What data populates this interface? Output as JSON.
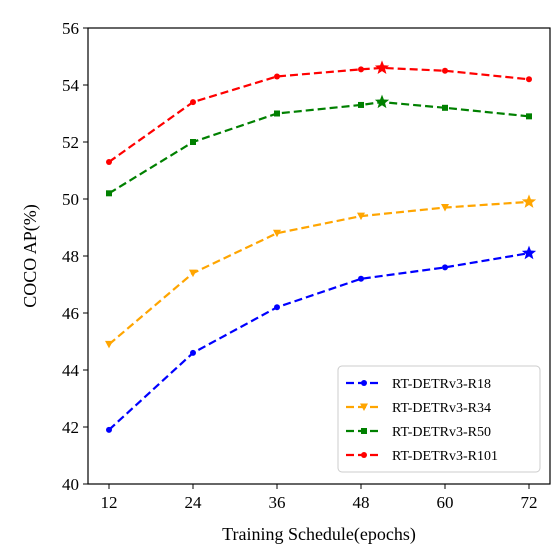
{
  "chart_data": {
    "type": "line",
    "title": "",
    "xlabel": "Training Schedule(epochs)",
    "ylabel": "COCO AP(%)",
    "x": [
      12,
      24,
      36,
      48,
      60,
      72
    ],
    "xticks": [
      12,
      24,
      36,
      48,
      60,
      72
    ],
    "xlim": [
      9,
      75
    ],
    "ylim": [
      40,
      56
    ],
    "yticks": [
      40,
      42,
      44,
      46,
      48,
      50,
      52,
      54,
      56
    ],
    "grid": false,
    "legend_position": "bottom-right",
    "series": [
      {
        "name": "RT-DETRv3-R18",
        "color": "#0000ff",
        "marker": "dot",
        "x": [
          12,
          24,
          36,
          48,
          60,
          72
        ],
        "values": [
          41.9,
          44.6,
          46.2,
          47.2,
          47.6,
          48.1
        ],
        "star": {
          "x": 72,
          "y": 48.1
        }
      },
      {
        "name": "RT-DETRv3-R34",
        "color": "#ffa500",
        "marker": "triangle-down",
        "x": [
          12,
          24,
          36,
          48,
          60,
          72
        ],
        "values": [
          44.9,
          47.4,
          48.8,
          49.4,
          49.7,
          49.9
        ],
        "star": {
          "x": 72,
          "y": 49.9
        }
      },
      {
        "name": "RT-DETRv3-R50",
        "color": "#008000",
        "marker": "square",
        "x": [
          12,
          24,
          36,
          48,
          51,
          60,
          72
        ],
        "values": [
          50.2,
          52.0,
          53.0,
          53.3,
          53.4,
          53.2,
          52.9
        ],
        "star": {
          "x": 51,
          "y": 53.4
        }
      },
      {
        "name": "RT-DETRv3-R101",
        "color": "#ff0000",
        "marker": "dot",
        "x": [
          12,
          24,
          36,
          48,
          51,
          60,
          72
        ],
        "values": [
          51.3,
          53.4,
          54.3,
          54.55,
          54.6,
          54.5,
          54.2
        ],
        "star": {
          "x": 51,
          "y": 54.6
        }
      }
    ]
  }
}
